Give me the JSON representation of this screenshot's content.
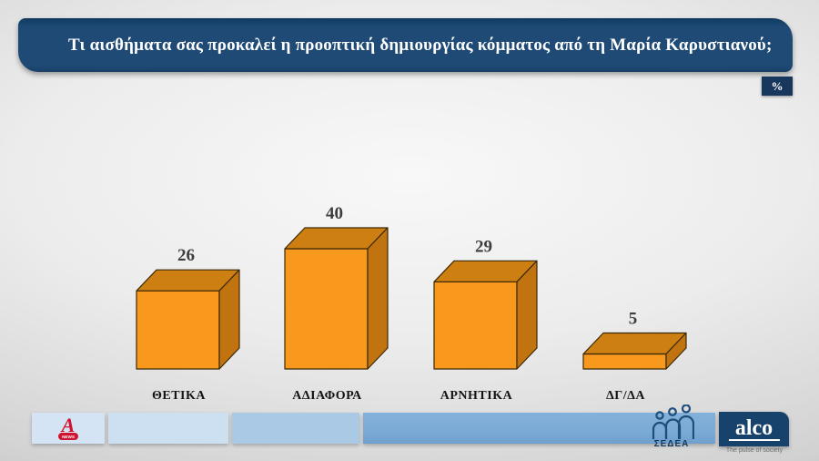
{
  "header": {
    "title": "Τι αισθήματα σας προκαλεί η προοπτική δημιουργίας κόμματος από τη Μαρία Καρυστιανού;"
  },
  "percent_badge": "%",
  "chart_data": {
    "type": "bar",
    "title": "Τι αισθήματα σας προκαλεί η προοπτική δημιουργίας κόμματος από τη Μαρία Καρυστιανού;",
    "categories": [
      "ΘΕΤΙΚΑ",
      "ΑΔΙΑΦΟΡΑ",
      "ΑΡΝΗΤΙΚΑ",
      "ΔΓ/ΔΑ"
    ],
    "values": [
      26,
      40,
      29,
      5
    ],
    "unit": "%",
    "style": "3d-box",
    "ylim": [
      0,
      45
    ],
    "colors": {
      "front": "#F8991D",
      "top": "#CE7F12",
      "side": "#C0730F",
      "outline": "#3b2a08",
      "value_text": "#3d3d3d",
      "category_text": "#141414"
    }
  },
  "footer": {
    "alpha": {
      "letter": "A",
      "badge": "NEWS",
      "color": "#d01430"
    },
    "sedea_label": "ΣΕΔΕΑ",
    "alco": {
      "name": "alco",
      "tagline": "The pulse of society"
    }
  },
  "theme": {
    "banner_navy": "#1e4a75",
    "badge_navy": "#17375c",
    "footer_blue_light": "#cde0f2",
    "footer_blue_mid": "#a9c9e5",
    "footer_blue_dark": "#7aaad5",
    "background_gray": "#d2d2d2"
  }
}
